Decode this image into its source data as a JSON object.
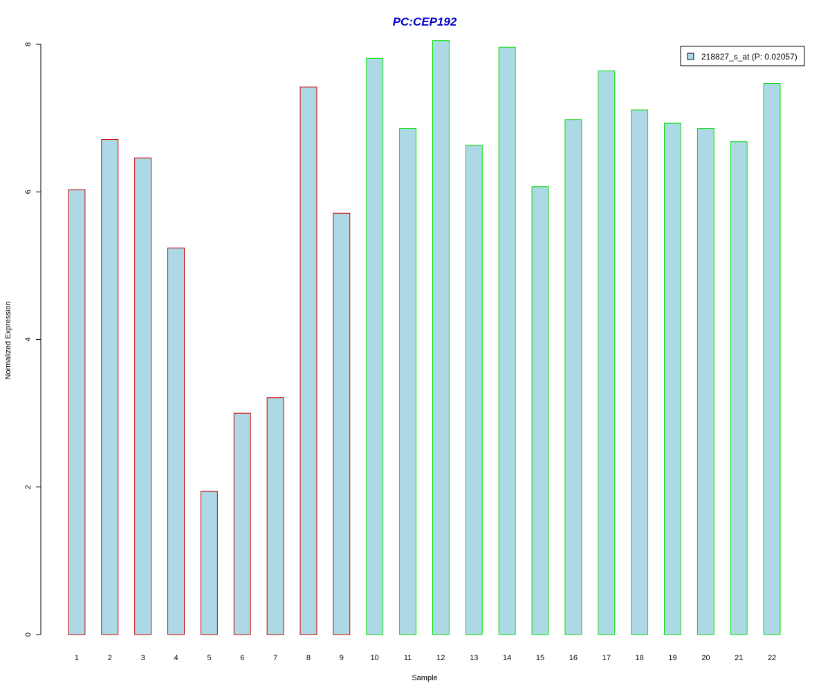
{
  "chart_data": {
    "type": "bar",
    "title": "PC:CEP192",
    "xlabel": "Sample",
    "ylabel": "Normalized Expression",
    "categories": [
      "1",
      "2",
      "3",
      "4",
      "5",
      "6",
      "7",
      "8",
      "9",
      "10",
      "11",
      "12",
      "13",
      "14",
      "15",
      "16",
      "17",
      "18",
      "19",
      "20",
      "21",
      "22"
    ],
    "series": [
      {
        "name": "218827_s_at (P: 0.02057)",
        "values": [
          6.03,
          6.71,
          6.46,
          5.24,
          1.94,
          3.0,
          3.21,
          7.42,
          5.71,
          7.81,
          6.86,
          8.05,
          6.63,
          7.96,
          6.07,
          6.98,
          7.64,
          7.11,
          6.93,
          6.86,
          6.68,
          7.47
        ]
      }
    ],
    "bar_border_groups": [
      {
        "samples": [
          "1",
          "2",
          "3",
          "4",
          "5",
          "6",
          "7",
          "8",
          "9"
        ],
        "border_color": "#cc0000"
      },
      {
        "samples": [
          "10",
          "11",
          "12",
          "13",
          "14",
          "15",
          "16",
          "17",
          "18",
          "19",
          "20",
          "21",
          "22"
        ],
        "border_color": "#00e000"
      }
    ],
    "yticks": [
      0,
      2,
      4,
      6,
      8
    ],
    "ylim": [
      0,
      8
    ],
    "legend_position": "top-right",
    "grid": false,
    "colors": {
      "title": "#0000cc",
      "bar_fill": "#add8e6",
      "axis": "#000000"
    }
  }
}
